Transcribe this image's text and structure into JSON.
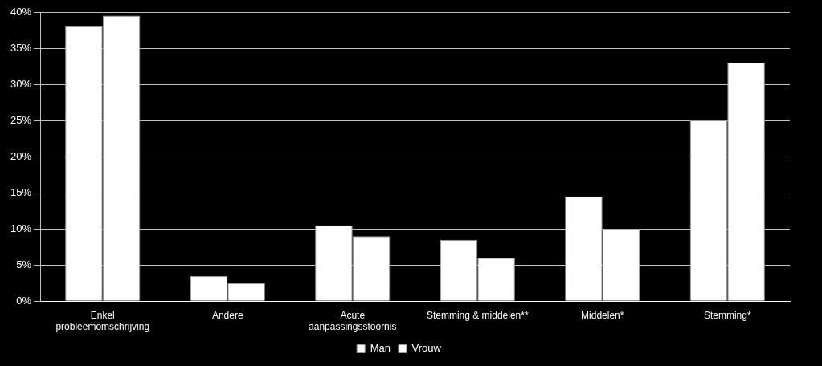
{
  "chart_data": {
    "type": "bar",
    "categories": [
      "Enkel probleemomschrijving",
      "Andere",
      "Acute aanpassingsstoornis",
      "Stemming & middelen**",
      "Middelen*",
      "Stemming*"
    ],
    "series": [
      {
        "name": "Man",
        "color": "#ffffff",
        "values": [
          38,
          3.5,
          10.5,
          8.5,
          14.5,
          25
        ]
      },
      {
        "name": "Vrouw",
        "color": "#ffffff",
        "values": [
          39.5,
          2.5,
          9,
          6,
          10,
          33
        ]
      }
    ],
    "ylim": [
      0,
      40
    ],
    "yticks": [
      {
        "value": 0,
        "label": "0%"
      },
      {
        "value": 5,
        "label": "5%"
      },
      {
        "value": 10,
        "label": "10%"
      },
      {
        "value": 15,
        "label": "15%"
      },
      {
        "value": 20,
        "label": "20%"
      },
      {
        "value": 25,
        "label": "25%"
      },
      {
        "value": 30,
        "label": "30%"
      },
      {
        "value": 35,
        "label": "35%"
      },
      {
        "value": 40,
        "label": "40%"
      }
    ],
    "grid": true,
    "legend": "bottom"
  }
}
